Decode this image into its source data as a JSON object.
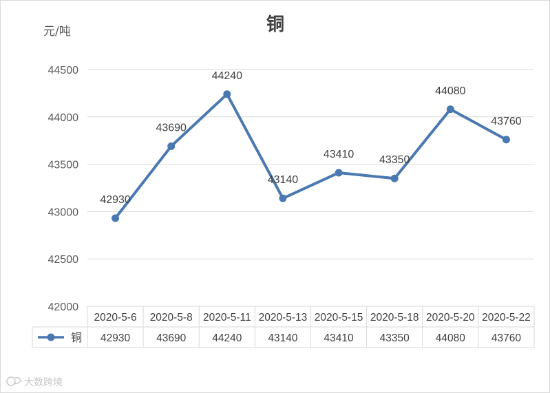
{
  "chart_data": {
    "type": "line",
    "title": "铜",
    "unit_label": "元/吨",
    "categories": [
      "2020-5-6",
      "2020-5-8",
      "2020-5-11",
      "2020-5-13",
      "2020-5-15",
      "2020-5-18",
      "2020-5-20",
      "2020-5-22"
    ],
    "series": [
      {
        "name": "铜",
        "values": [
          42930,
          43690,
          44240,
          43140,
          43410,
          43350,
          44080,
          43760
        ],
        "color": "#4a78b0"
      }
    ],
    "ylim": [
      42000,
      44500
    ],
    "yticks": [
      "42000",
      "42500",
      "43000",
      "43500",
      "44000",
      "44500"
    ],
    "grid": true,
    "data_table": true
  },
  "watermark": "大数跨境"
}
